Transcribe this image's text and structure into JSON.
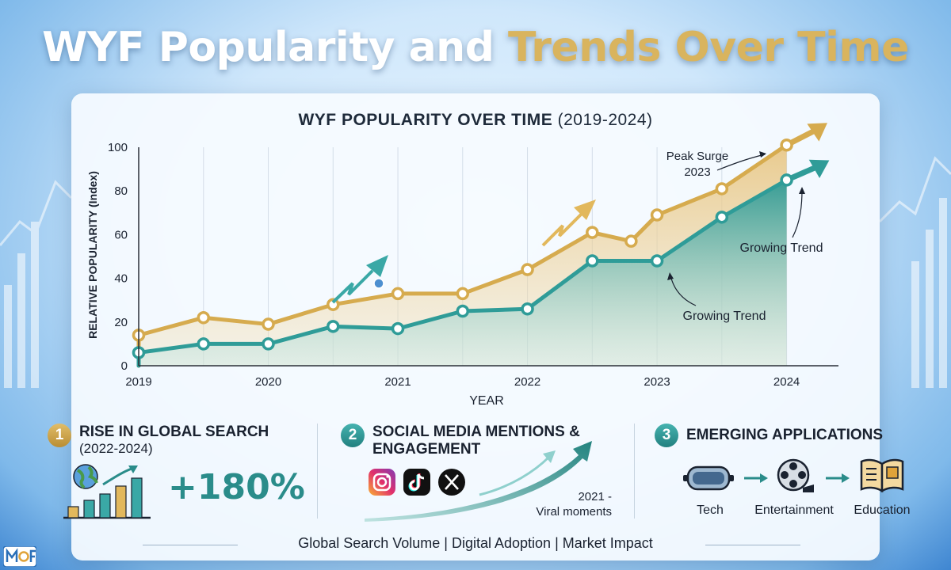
{
  "title": {
    "part1": "WYF Popularity and",
    "part2": "Trends Over Time"
  },
  "chart_data": {
    "type": "area",
    "title_main": "WYF POPULARITY OVER TIME",
    "title_years": "(2019-2024)",
    "xlabel": "YEAR",
    "ylabel": "RELATIVE POPULARITY (Index)",
    "x_ticks": [
      "2019",
      "2020",
      "2021",
      "2022",
      "2023",
      "2024"
    ],
    "y_ticks": [
      "0",
      "20",
      "40",
      "60",
      "80",
      "100"
    ],
    "ylim": [
      0,
      100
    ],
    "xlim": [
      2019,
      2024.4
    ],
    "series": [
      {
        "color": "#d6ab4e",
        "x": [
          2019,
          2019.5,
          2020,
          2020.5,
          2021,
          2021.5,
          2022,
          2022.5,
          2022.8,
          2023,
          2023.5,
          2024
        ],
        "values": [
          14,
          22,
          19,
          28,
          33,
          33,
          44,
          61,
          57,
          69,
          81,
          101
        ]
      },
      {
        "color": "#2f9c98",
        "x": [
          2019,
          2019.5,
          2020,
          2020.5,
          2021,
          2021.5,
          2022,
          2022.5,
          2023,
          2023.5,
          2024
        ],
        "values": [
          6,
          10,
          10,
          18,
          17,
          25,
          26,
          48,
          48,
          68,
          85
        ]
      }
    ],
    "annotations": [
      {
        "text_lines": [
          "Peak Surge",
          "2023"
        ]
      },
      {
        "text_lines": [
          "Growing Trend"
        ]
      },
      {
        "text_lines": [
          "Growing Trend"
        ]
      }
    ],
    "grid": "vertical"
  },
  "features": [
    {
      "num": "1",
      "title": "RISE IN GLOBAL SEARCH",
      "sub": "(2022-2024)",
      "stat": "+180%"
    },
    {
      "num": "2",
      "title_line1": "SOCIAL MEDIA MENTIONS &",
      "title_line2": "ENGAGEMENT",
      "note_line1": "2021 -",
      "note_line2": "Viral moments"
    },
    {
      "num": "3",
      "title": "EMERGING APPLICATIONS",
      "apps": [
        "Tech",
        "Entertainment",
        "Education"
      ]
    }
  ],
  "footer": "Global Search Volume | Digital Adoption | Market Impact",
  "icons": [
    "globe-icon",
    "instagram-icon",
    "tiktok-icon",
    "x-icon",
    "vr-headset-icon",
    "film-reel-icon",
    "open-book-icon"
  ],
  "colors": {
    "gold": "#d6ab4e",
    "teal": "#2f9c98",
    "title_gold": "#d9b45e"
  }
}
